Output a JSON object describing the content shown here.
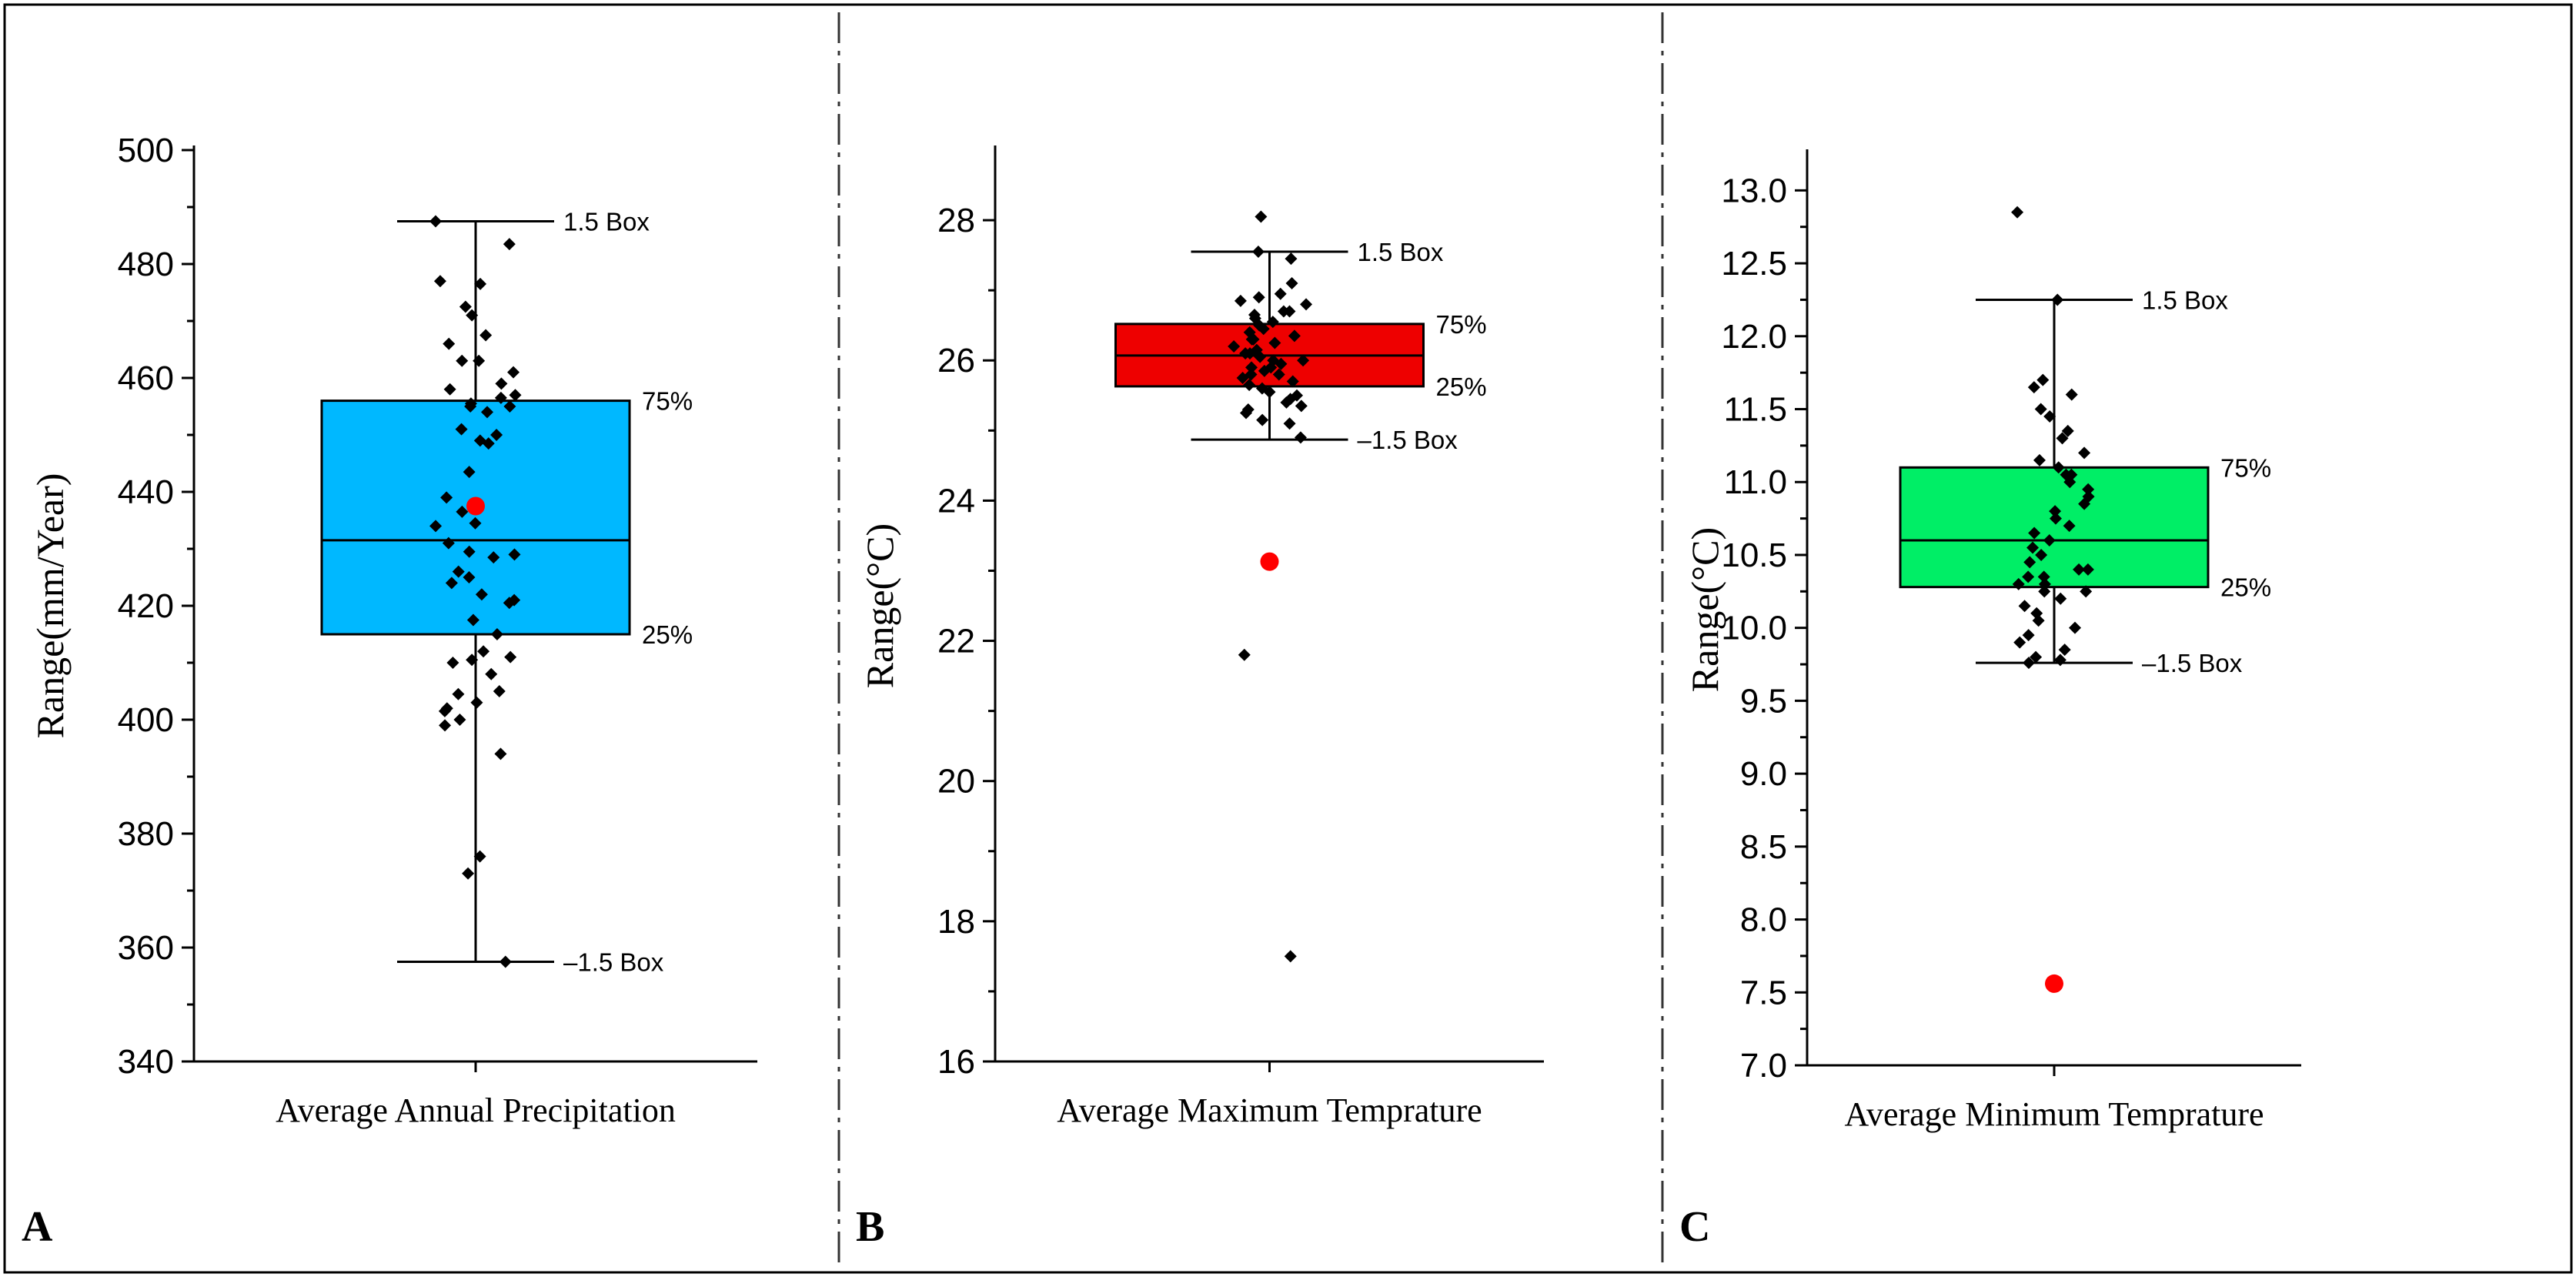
{
  "chart_data": [
    {
      "type": "box",
      "panel_label": "A",
      "title": "",
      "xlabel": "Average Annual Precipitation",
      "ylabel": "Range(mm/Year)",
      "ylim": [
        340,
        500
      ],
      "ticks": [
        340,
        360,
        380,
        400,
        420,
        440,
        460,
        480,
        500
      ],
      "tick_decimals": 0,
      "box_color": "#00B8FF",
      "stats": {
        "q1": 415,
        "median": 431.5,
        "q3": 456,
        "whisker_low": 357.5,
        "whisker_high": 487.5,
        "mean": 437.5
      },
      "labels": {
        "whisker_high": "1.5 Box",
        "q3": "75%",
        "q1": "25%",
        "whisker_low": "–1.5 Box"
      },
      "points": [
        487.5,
        483.5,
        477,
        476.5,
        472.5,
        471,
        467.5,
        466,
        463,
        463,
        461,
        459,
        458,
        457,
        456.5,
        455.5,
        455,
        455,
        454,
        451,
        450,
        449,
        448.5,
        443.5,
        439,
        436.5,
        434.5,
        434,
        431,
        429.5,
        429,
        428.5,
        426,
        425,
        424,
        422,
        421,
        420.5,
        417.5,
        415,
        412,
        411,
        410.5,
        410,
        408,
        405,
        404.5,
        403,
        402,
        401.5,
        400,
        399,
        394,
        376,
        373,
        357.5
      ]
    },
    {
      "type": "box",
      "panel_label": "B",
      "title": "",
      "xlabel": "Average Maximum Temprature",
      "ylabel": "Range(°C)",
      "ylim": [
        16,
        29
      ],
      "ticks": [
        16,
        18,
        20,
        22,
        24,
        26,
        28
      ],
      "tick_decimals": 0,
      "box_color": "#EE0000",
      "stats": {
        "q1": 25.63,
        "median": 26.07,
        "q3": 26.52,
        "whisker_low": 24.87,
        "whisker_high": 27.55,
        "mean": 23.13
      },
      "labels": {
        "whisker_high": "1.5 Box",
        "q3": "75%",
        "q1": "25%",
        "whisker_low": "–1.5 Box"
      },
      "points": [
        28.05,
        27.55,
        27.45,
        27.1,
        26.95,
        26.9,
        26.85,
        26.8,
        26.7,
        26.7,
        26.65,
        26.6,
        26.55,
        26.5,
        26.45,
        26.4,
        26.35,
        26.3,
        26.3,
        26.25,
        26.2,
        26.15,
        26.1,
        26.1,
        26.05,
        26.0,
        26.0,
        25.95,
        25.9,
        25.9,
        25.85,
        25.8,
        25.8,
        25.75,
        25.7,
        25.65,
        25.6,
        25.55,
        25.5,
        25.45,
        25.4,
        25.35,
        25.3,
        25.25,
        25.15,
        25.1,
        24.9,
        21.8,
        17.5
      ]
    },
    {
      "type": "box",
      "panel_label": "C",
      "title": "",
      "xlabel": "Average Minimum Temprature",
      "ylabel": "Range(°C)",
      "ylim": [
        7.0,
        13.25
      ],
      "ticks": [
        7.0,
        7.5,
        8.0,
        8.5,
        9.0,
        9.5,
        10.0,
        10.5,
        11.0,
        11.5,
        12.0,
        12.5,
        13.0
      ],
      "tick_decimals": 1,
      "box_color": "#00EE66",
      "stats": {
        "q1": 10.28,
        "median": 10.6,
        "q3": 11.1,
        "whisker_low": 9.76,
        "whisker_high": 12.25,
        "mean": 7.56
      },
      "labels": {
        "whisker_high": "1.5 Box",
        "q3": "75%",
        "q1": "25%",
        "whisker_low": "–1.5 Box"
      },
      "points": [
        12.85,
        12.25,
        11.7,
        11.65,
        11.6,
        11.5,
        11.45,
        11.35,
        11.3,
        11.2,
        11.15,
        11.1,
        11.05,
        11.05,
        11.0,
        10.95,
        10.9,
        10.85,
        10.8,
        10.75,
        10.7,
        10.65,
        10.6,
        10.55,
        10.5,
        10.45,
        10.4,
        10.4,
        10.35,
        10.35,
        10.3,
        10.3,
        10.25,
        10.25,
        10.2,
        10.15,
        10.1,
        10.05,
        10.0,
        9.95,
        9.9,
        9.85,
        9.8,
        9.78,
        9.76
      ]
    }
  ]
}
